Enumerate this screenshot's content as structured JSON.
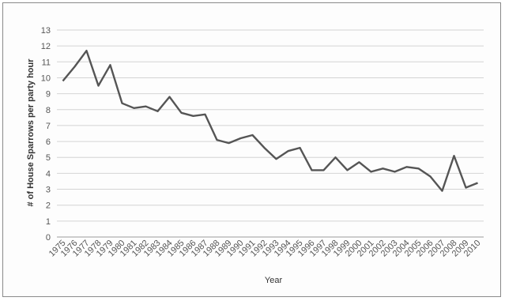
{
  "chart_data": {
    "type": "line",
    "title": "",
    "xlabel": "Year",
    "ylabel": "# of House Sparrows per party hour",
    "ylim": [
      0,
      13
    ],
    "yticks": [
      0,
      1,
      2,
      3,
      4,
      5,
      6,
      7,
      8,
      9,
      10,
      11,
      12,
      13
    ],
    "grid": true,
    "legend": "none",
    "x": [
      "1975",
      "1976",
      "1977",
      "1978",
      "1979",
      "1980",
      "1981",
      "1982",
      "1983",
      "1984",
      "1985",
      "1986",
      "1987",
      "1988",
      "1989",
      "1990",
      "1991",
      "1992",
      "1993",
      "1994",
      "1995",
      "1996",
      "1997",
      "1998",
      "1999",
      "2000",
      "2001",
      "2002",
      "2003",
      "2004",
      "2005",
      "2006",
      "2007",
      "2008",
      "2009",
      "2010"
    ],
    "series": [
      {
        "name": "",
        "color": "#555555",
        "values": [
          9.8,
          10.7,
          11.7,
          9.5,
          10.8,
          8.4,
          8.1,
          8.2,
          7.9,
          8.8,
          7.8,
          7.6,
          7.7,
          6.1,
          5.9,
          6.2,
          6.4,
          5.6,
          4.9,
          5.4,
          5.6,
          4.2,
          4.2,
          5.0,
          4.2,
          4.7,
          4.1,
          4.3,
          4.1,
          4.4,
          4.3,
          3.8,
          2.9,
          5.1,
          3.1,
          3.4
        ]
      }
    ]
  }
}
